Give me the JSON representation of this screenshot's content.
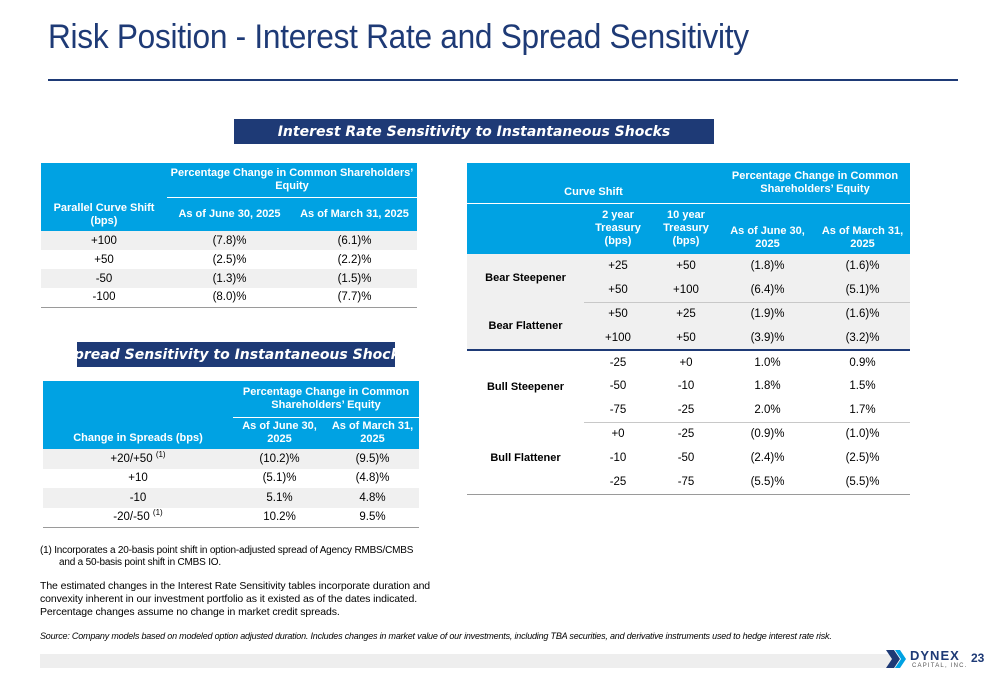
{
  "title": "Risk Position - Interest Rate and Spread Sensitivity",
  "banner_ir": "Interest Rate Sensitivity to Instantaneous Shocks",
  "banner_spread": "Spread Sensitivity to Instantaneous Shocks",
  "colors": {
    "navy": "#1e3a76",
    "header_blue": "#00a2e3",
    "row_alt": "#f0f0f0"
  },
  "parallel_table": {
    "col1": "Parallel Curve Shift (bps)",
    "group": "Percentage Change in Common Shareholders’ Equity",
    "col2": "As of June 30, 2025",
    "col3": "As of March 31, 2025",
    "rows": [
      [
        "+100",
        "(7.8)%",
        "(6.1)%"
      ],
      [
        "+50",
        "(2.5)%",
        "(2.2)%"
      ],
      [
        "-50",
        "(1.3)%",
        "(1.5)%"
      ],
      [
        "-100",
        "(8.0)%",
        "(7.7)%"
      ]
    ]
  },
  "spread_table": {
    "col1": "Change in Spreads (bps)",
    "group": "Percentage Change in Common Shareholders’ Equity",
    "col2": "As of June 30, 2025",
    "col3": "As of March 31, 2025",
    "footnote_mark": "(1)",
    "rows": [
      [
        "+20/+50",
        "(10.2)%",
        "(9.5)%"
      ],
      [
        "+10",
        "(5.1)%",
        "(4.8)%"
      ],
      [
        "-10",
        "5.1%",
        "4.8%"
      ],
      [
        "-20/-50",
        "10.2%",
        "9.5%"
      ]
    ]
  },
  "curve_table": {
    "curve_shift": "Curve Shift",
    "group": "Percentage Change in Common Shareholders’ Equity",
    "col_2y": "2 year Treasury (bps)",
    "col_10y": "10 year Treasury (bps)",
    "col_jun": "As of June 30, 2025",
    "col_mar": "As of March 31, 2025",
    "groups": [
      {
        "name": "Bear Steepener",
        "rows": [
          [
            "+25",
            "+50",
            "(1.8)%",
            "(1.6)%"
          ],
          [
            "+50",
            "+100",
            "(6.4)%",
            "(5.1)%"
          ]
        ]
      },
      {
        "name": "Bear Flattener",
        "rows": [
          [
            "+50",
            "+25",
            "(1.9)%",
            "(1.6)%"
          ],
          [
            "+100",
            "+50",
            "(3.9)%",
            "(3.2)%"
          ]
        ]
      },
      {
        "name": "Bull Steepener",
        "rows": [
          [
            "-25",
            "+0",
            "1.0%",
            "0.9%"
          ],
          [
            "-50",
            "-10",
            "1.8%",
            "1.5%"
          ],
          [
            "-75",
            "-25",
            "2.0%",
            "1.7%"
          ]
        ]
      },
      {
        "name": "Bull Flattener",
        "rows": [
          [
            "+0",
            "-25",
            "(0.9)%",
            "(1.0)%"
          ],
          [
            "-10",
            "-50",
            "(2.4)%",
            "(2.5)%"
          ],
          [
            "-25",
            "-75",
            "(5.5)%",
            "(5.5)%"
          ]
        ]
      }
    ]
  },
  "footnote_line1": "(1)  Incorporates a 20-basis point shift in option-adjusted spread of Agency RMBS/CMBS",
  "footnote_line2": "and a 50-basis point shift in CMBS IO.",
  "paragraph": "The estimated changes in the Interest Rate Sensitivity tables incorporate duration and convexity inherent in our investment portfolio as it existed as of the dates indicated. Percentage changes assume no change in market credit spreads.",
  "source": "Source: Company models based on modeled option adjusted duration. Includes changes in market value of our investments, including TBA securities, and derivative instruments used to hedge interest rate risk.",
  "logo_word": "DYNEX",
  "logo_sub": "CAPITAL, INC.",
  "page_number": "23"
}
